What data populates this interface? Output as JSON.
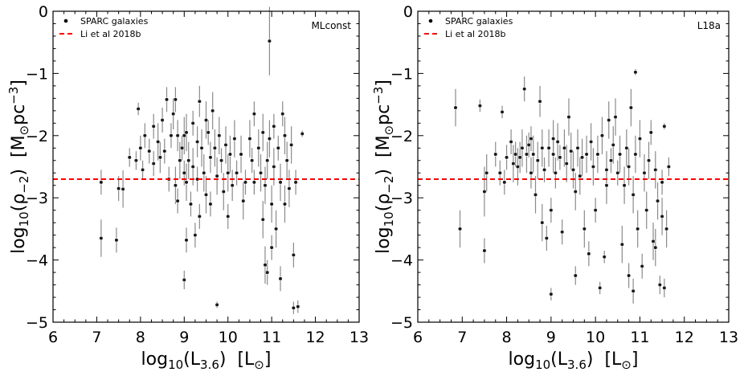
{
  "chart_data": [
    {
      "type": "scatter",
      "panel_label": "MLconst",
      "xlabel": "log10(L3.6)  [L⊙]",
      "ylabel": "log10(ρ−2)  [M⊙pc−3]",
      "xlim": [
        6,
        13
      ],
      "ylim": [
        -5,
        0
      ],
      "xticks": [
        6,
        7,
        8,
        9,
        10,
        11,
        12,
        13
      ],
      "yticks": [
        0,
        -1,
        -2,
        -3,
        -4,
        -5
      ],
      "legend": [
        "SPARC galaxies",
        "Li et al 2018b"
      ],
      "legend_position": "top-left",
      "reference_line": {
        "name": "Li et al 2018b",
        "y": -2.7,
        "color": "#ff0000",
        "style": "dashed"
      },
      "series": [
        {
          "name": "SPARC galaxies",
          "points": [
            [
              7.1,
              -3.65,
              0.3
            ],
            [
              7.1,
              -2.75,
              0.2
            ],
            [
              7.45,
              -3.68,
              0.2
            ],
            [
              7.5,
              -2.85,
              0.2
            ],
            [
              7.6,
              -2.86,
              0.3
            ],
            [
              7.75,
              -2.35,
              0.15
            ],
            [
              7.9,
              -2.4,
              0.15
            ],
            [
              7.95,
              -1.57,
              0.1
            ],
            [
              8.0,
              -2.2,
              0.2
            ],
            [
              8.05,
              -2.55,
              0.15
            ],
            [
              8.1,
              -2.0,
              0.2
            ],
            [
              8.2,
              -2.25,
              0.2
            ],
            [
              8.3,
              -1.85,
              0.2
            ],
            [
              8.4,
              -2.1,
              0.3
            ],
            [
              8.45,
              -2.35,
              0.25
            ],
            [
              8.5,
              -1.75,
              0.2
            ],
            [
              8.55,
              -2.25,
              0.2
            ],
            [
              8.6,
              -1.42,
              0.2
            ],
            [
              8.65,
              -2.7,
              0.2
            ],
            [
              8.7,
              -2.0,
              0.2
            ],
            [
              8.75,
              -1.65,
              0.25
            ],
            [
              8.8,
              -1.42,
              0.2
            ],
            [
              8.8,
              -2.8,
              0.3
            ],
            [
              8.85,
              -2.0,
              0.25
            ],
            [
              8.85,
              -3.05,
              0.2
            ],
            [
              8.9,
              -2.4,
              0.3
            ],
            [
              8.95,
              -2.2,
              0.2
            ],
            [
              9.0,
              -2.6,
              0.2
            ],
            [
              9.0,
              -2.0,
              0.3
            ],
            [
              9.05,
              -3.68,
              0.2
            ],
            [
              9.05,
              -1.95,
              0.3
            ],
            [
              9.1,
              -2.4,
              0.3
            ],
            [
              9.15,
              -3.1,
              0.2
            ],
            [
              9.2,
              -1.8,
              0.2
            ],
            [
              9.2,
              -2.5,
              0.3
            ],
            [
              9.25,
              -3.6,
              0.2
            ],
            [
              9.3,
              -2.1,
              0.25
            ],
            [
              9.3,
              -2.7,
              0.2
            ],
            [
              9.35,
              -1.45,
              0.25
            ],
            [
              9.35,
              -3.3,
              0.2
            ],
            [
              9.4,
              -2.2,
              0.3
            ],
            [
              9.45,
              -2.6,
              0.3
            ],
            [
              9.5,
              -1.75,
              0.3
            ],
            [
              9.5,
              -2.95,
              0.3
            ],
            [
              9.55,
              -1.95,
              0.2
            ],
            [
              9.6,
              -2.35,
              0.25
            ],
            [
              9.6,
              -3.1,
              0.2
            ],
            [
              9.65,
              -1.6,
              0.3
            ],
            [
              9.7,
              -2.2,
              0.3
            ],
            [
              9.75,
              -2.65,
              0.3
            ],
            [
              9.8,
              -2.0,
              0.3
            ],
            [
              9.85,
              -2.4,
              0.2
            ],
            [
              9.9,
              -2.9,
              0.3
            ],
            [
              9.95,
              -2.15,
              0.3
            ],
            [
              10.0,
              -2.6,
              0.3
            ],
            [
              10.0,
              -3.3,
              0.2
            ],
            [
              10.05,
              -2.3,
              0.3
            ],
            [
              10.1,
              -2.8,
              0.25
            ],
            [
              10.15,
              -2.05,
              0.3
            ],
            [
              10.2,
              -2.6,
              0.2
            ],
            [
              10.3,
              -2.3,
              0.3
            ],
            [
              10.35,
              -3.05,
              0.3
            ],
            [
              10.4,
              -2.75,
              0.2
            ],
            [
              9.0,
              -4.32,
              0.15
            ],
            [
              9.75,
              -4.72,
              0.05
            ],
            [
              10.5,
              -2.05,
              0.3
            ],
            [
              10.55,
              -2.4,
              0.2
            ],
            [
              10.6,
              -2.75,
              0.2
            ],
            [
              10.7,
              -2.2,
              0.3
            ],
            [
              10.75,
              -2.6,
              0.3
            ],
            [
              10.8,
              -1.95,
              0.3
            ],
            [
              10.85,
              -2.8,
              0.3
            ],
            [
              10.85,
              -4.08,
              0.3
            ],
            [
              10.9,
              -4.2,
              0.2
            ],
            [
              10.9,
              -2.4,
              0.3
            ],
            [
              10.95,
              -0.48,
              0.55
            ],
            [
              10.95,
              -2.05,
              0.3
            ],
            [
              11.0,
              -3.1,
              0.3
            ],
            [
              11.05,
              -2.5,
              0.3
            ],
            [
              11.05,
              -1.85,
              0.2
            ],
            [
              11.1,
              -3.5,
              0.3
            ],
            [
              11.15,
              -2.2,
              0.2
            ],
            [
              11.2,
              -4.3,
              0.2
            ],
            [
              11.2,
              -2.75,
              0.3
            ],
            [
              11.25,
              -1.65,
              0.2
            ],
            [
              11.3,
              -2.0,
              0.3
            ],
            [
              11.3,
              -3.1,
              0.3
            ],
            [
              11.35,
              -2.4,
              0.3
            ],
            [
              11.4,
              -2.85,
              0.3
            ],
            [
              11.45,
              -2.15,
              0.3
            ],
            [
              11.5,
              -3.92,
              0.2
            ],
            [
              11.5,
              -4.77,
              0.1
            ],
            [
              11.55,
              -2.75,
              0.2
            ],
            [
              11.6,
              -4.75,
              0.1
            ],
            [
              11.7,
              -1.97,
              0.05
            ],
            [
              10.6,
              -1.65,
              0.2
            ],
            [
              10.8,
              -3.35,
              0.3
            ],
            [
              11.0,
              -3.8,
              0.2
            ],
            [
              8.3,
              -2.45,
              0.2
            ],
            [
              9.05,
              -2.75,
              0.3
            ]
          ]
        }
      ]
    },
    {
      "type": "scatter",
      "panel_label": "L18a",
      "xlabel": "log10(L3.6)  [L⊙]",
      "ylabel": "log10(ρ−2)  [M⊙pc−3]",
      "xlim": [
        6,
        13
      ],
      "ylim": [
        -5,
        0
      ],
      "xticks": [
        6,
        7,
        8,
        9,
        10,
        11,
        12,
        13
      ],
      "yticks": [
        0,
        -1,
        -2,
        -3,
        -4,
        -5
      ],
      "legend": [
        "SPARC galaxies",
        "Li et al 2018b"
      ],
      "legend_position": "top-left",
      "reference_line": {
        "name": "Li et al 2018b",
        "y": -2.7,
        "color": "#ff0000",
        "style": "dashed"
      },
      "series": [
        {
          "name": "SPARC galaxies",
          "points": [
            [
              6.85,
              -1.55,
              0.3
            ],
            [
              6.95,
              -3.5,
              0.3
            ],
            [
              7.4,
              -1.52,
              0.1
            ],
            [
              7.5,
              -3.85,
              0.2
            ],
            [
              7.5,
              -2.9,
              0.4
            ],
            [
              7.55,
              -2.6,
              0.3
            ],
            [
              7.75,
              -2.3,
              0.2
            ],
            [
              7.85,
              -2.6,
              0.2
            ],
            [
              7.9,
              -1.62,
              0.1
            ],
            [
              7.95,
              -2.75,
              0.2
            ],
            [
              8.0,
              -2.35,
              0.2
            ],
            [
              8.1,
              -2.1,
              0.2
            ],
            [
              8.15,
              -2.45,
              0.3
            ],
            [
              8.2,
              -2.3,
              0.2
            ],
            [
              8.25,
              -2.5,
              0.3
            ],
            [
              8.3,
              -2.35,
              0.25
            ],
            [
              8.35,
              -2.2,
              0.3
            ],
            [
              8.4,
              -1.25,
              0.2
            ],
            [
              8.45,
              -2.3,
              0.3
            ],
            [
              8.5,
              -2.15,
              0.2
            ],
            [
              8.55,
              -2.6,
              0.25
            ],
            [
              8.6,
              -2.3,
              0.3
            ],
            [
              8.65,
              -2.95,
              0.3
            ],
            [
              8.7,
              -2.4,
              0.3
            ],
            [
              8.75,
              -1.45,
              0.25
            ],
            [
              8.8,
              -2.2,
              0.3
            ],
            [
              8.8,
              -3.4,
              0.3
            ],
            [
              8.85,
              -2.55,
              0.2
            ],
            [
              8.9,
              -3.65,
              0.2
            ],
            [
              8.95,
              -2.2,
              0.3
            ],
            [
              9.0,
              -3.2,
              0.2
            ],
            [
              9.0,
              -4.55,
              0.1
            ],
            [
              9.05,
              -2.3,
              0.3
            ],
            [
              9.1,
              -2.6,
              0.25
            ],
            [
              9.15,
              -2.1,
              0.3
            ],
            [
              9.2,
              -2.35,
              0.2
            ],
            [
              9.25,
              -3.55,
              0.2
            ],
            [
              9.3,
              -2.2,
              0.3
            ],
            [
              9.35,
              -2.45,
              0.3
            ],
            [
              9.4,
              -1.7,
              0.3
            ],
            [
              9.45,
              -2.25,
              0.3
            ],
            [
              9.5,
              -2.55,
              0.3
            ],
            [
              9.55,
              -4.25,
              0.15
            ],
            [
              9.6,
              -2.2,
              0.3
            ],
            [
              9.65,
              -2.65,
              0.3
            ],
            [
              9.7,
              -2.35,
              0.3
            ],
            [
              9.75,
              -3.5,
              0.3
            ],
            [
              9.8,
              -2.3,
              0.3
            ],
            [
              9.85,
              -3.9,
              0.2
            ],
            [
              9.9,
              -2.1,
              0.3
            ],
            [
              9.95,
              -2.5,
              0.3
            ],
            [
              10.0,
              -3.2,
              0.2
            ],
            [
              10.05,
              -2.3,
              0.3
            ],
            [
              10.1,
              -4.45,
              0.1
            ],
            [
              10.15,
              -2.0,
              0.3
            ],
            [
              10.2,
              -3.95,
              0.1
            ],
            [
              10.25,
              -2.55,
              0.3
            ],
            [
              10.3,
              -1.75,
              0.3
            ],
            [
              10.35,
              -2.4,
              0.2
            ],
            [
              10.4,
              -2.15,
              0.3
            ],
            [
              10.45,
              -1.7,
              0.3
            ],
            [
              10.5,
              -2.6,
              0.2
            ],
            [
              10.55,
              -2.3,
              0.3
            ],
            [
              10.6,
              -3.75,
              0.3
            ],
            [
              10.65,
              -2.8,
              0.3
            ],
            [
              10.7,
              -2.2,
              0.3
            ],
            [
              10.75,
              -4.25,
              0.2
            ],
            [
              10.75,
              -2.5,
              0.3
            ],
            [
              10.8,
              -1.55,
              0.3
            ],
            [
              10.85,
              -4.5,
              0.2
            ],
            [
              10.85,
              -2.95,
              0.3
            ],
            [
              10.9,
              -0.98,
              0.05
            ],
            [
              10.9,
              -2.3,
              0.3
            ],
            [
              10.95,
              -3.5,
              0.3
            ],
            [
              11.0,
              -2.05,
              0.3
            ],
            [
              11.05,
              -4.1,
              0.2
            ],
            [
              11.1,
              -2.6,
              0.3
            ],
            [
              11.15,
              -3.2,
              0.3
            ],
            [
              11.2,
              -2.4,
              0.3
            ],
            [
              11.25,
              -1.95,
              0.2
            ],
            [
              11.3,
              -3.7,
              0.3
            ],
            [
              11.35,
              -2.55,
              0.3
            ],
            [
              11.4,
              -3.05,
              0.3
            ],
            [
              11.45,
              -4.4,
              0.15
            ],
            [
              11.5,
              -3.3,
              0.3
            ],
            [
              11.5,
              -2.75,
              0.2
            ],
            [
              11.55,
              -4.45,
              0.15
            ],
            [
              11.55,
              -1.85,
              0.05
            ],
            [
              11.6,
              -3.5,
              0.3
            ],
            [
              11.65,
              -2.5,
              0.15
            ],
            [
              9.05,
              -2.05,
              0.3
            ],
            [
              9.55,
              -2.9,
              0.3
            ],
            [
              10.25,
              -2.8,
              0.3
            ],
            [
              11.35,
              -3.8,
              0.3
            ],
            [
              8.55,
              -2.05,
              0.2
            ]
          ]
        }
      ]
    }
  ]
}
